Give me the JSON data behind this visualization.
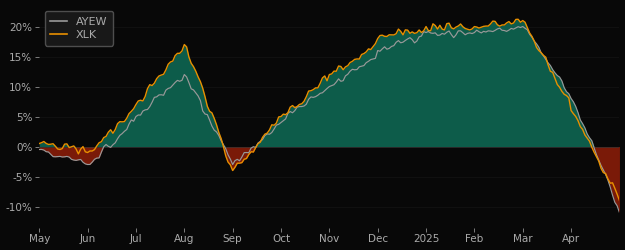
{
  "background_color": "#080808",
  "axes_bg_color": "#080808",
  "line1_color": "#999999",
  "line2_color": "#e89000",
  "fill_positive_color": "#0d5c4a",
  "fill_negative_color": "#7a1a08",
  "legend_bg": "#1a1a1a",
  "legend_edge": "#555555",
  "tick_color": "#aaaaaa",
  "grid_color": "#222222",
  "label1": "AYEW",
  "label2": "XLK",
  "ytick_labels": [
    "-10%",
    "-5%",
    "0%",
    "5%",
    "10%",
    "15%",
    "20%"
  ],
  "ytick_values": [
    -0.1,
    -0.05,
    0.0,
    0.05,
    0.1,
    0.15,
    0.2
  ],
  "xlabels": [
    "May",
    "Jun",
    "Jul",
    "Aug",
    "Sep",
    "Oct",
    "Nov",
    "Dec",
    "2025",
    "Feb",
    "Mar",
    "Apr"
  ],
  "ylim": [
    -0.135,
    0.235
  ]
}
